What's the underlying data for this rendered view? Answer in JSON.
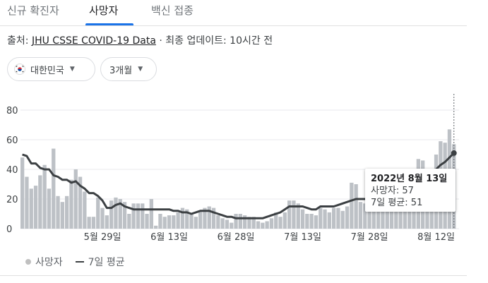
{
  "tabs": [
    {
      "label": "신규 확진자",
      "active": false
    },
    {
      "label": "사망자",
      "active": true
    },
    {
      "label": "백신 접종",
      "active": false
    }
  ],
  "source": {
    "prefix": "출처: ",
    "link": "JHU CSSE COVID-19 Data",
    "suffix": " · 최종 업데이트: 10시간 전"
  },
  "filters": {
    "region": {
      "label": "대한민국",
      "icon": "korea-flag-icon"
    },
    "period": {
      "label": "3개월"
    }
  },
  "tooltip": {
    "date": "2022년 8월 13일",
    "deaths": "사망자: 57",
    "avg": "7일 평균: 51"
  },
  "legend": {
    "deaths": "사망자",
    "avg": "7일 평균"
  },
  "colors": {
    "bar": "#bdc1c6",
    "line": "#3c4043",
    "accent": "#1a73e8"
  },
  "chart_data": {
    "type": "bar",
    "ylim": [
      0,
      90
    ],
    "yticks": [
      0,
      20,
      40,
      60,
      80
    ],
    "xtick_labels": [
      "5월 29일",
      "6월 13일",
      "6월 28일",
      "7월 13일",
      "7월 28일",
      "8월 12일"
    ],
    "xtick_indices": [
      18,
      33,
      48,
      63,
      78,
      93
    ],
    "series": [
      {
        "name": "사망자",
        "kind": "bar",
        "values": [
          48,
          35,
          27,
          29,
          36,
          43,
          27,
          54,
          22,
          18,
          22,
          33,
          40,
          35,
          25,
          8,
          8,
          21,
          14,
          9,
          19,
          21,
          20,
          18,
          10,
          17,
          17,
          17,
          10,
          20,
          2,
          10,
          8,
          9,
          9,
          11,
          14,
          13,
          10,
          8,
          12,
          14,
          15,
          14,
          9,
          7,
          6,
          4,
          10,
          10,
          9,
          8,
          8,
          5,
          4,
          5,
          7,
          11,
          8,
          11,
          19,
          19,
          17,
          13,
          10,
          10,
          9,
          14,
          13,
          11,
          14,
          14,
          12,
          15,
          31,
          30,
          18,
          17,
          16,
          12,
          20,
          19,
          19,
          19,
          17,
          14,
          20,
          20,
          28,
          47,
          46,
          27,
          31,
          50,
          59,
          58,
          67,
          57
        ]
      },
      {
        "name": "7일 평균",
        "kind": "line",
        "values": [
          50,
          49,
          44,
          44,
          41,
          40,
          40,
          36,
          35,
          33,
          33,
          31,
          32,
          29,
          27,
          24,
          24,
          22,
          19,
          14,
          14,
          16,
          17,
          15,
          14,
          13,
          13,
          13,
          13,
          13,
          13,
          13,
          13,
          13,
          12,
          12,
          11,
          11,
          10,
          11,
          12,
          12,
          12,
          11,
          10,
          9,
          8,
          8,
          7,
          7,
          7,
          7,
          7,
          7,
          7,
          8,
          9,
          10,
          11,
          13,
          15,
          15,
          15,
          15,
          14,
          13,
          13,
          15,
          15,
          15,
          15,
          16,
          17,
          18,
          19,
          20,
          20,
          20,
          20,
          20,
          21,
          22,
          22,
          22,
          22,
          22,
          22,
          22,
          23,
          25,
          27,
          30,
          35,
          40,
          43,
          45,
          48,
          51
        ]
      }
    ]
  }
}
